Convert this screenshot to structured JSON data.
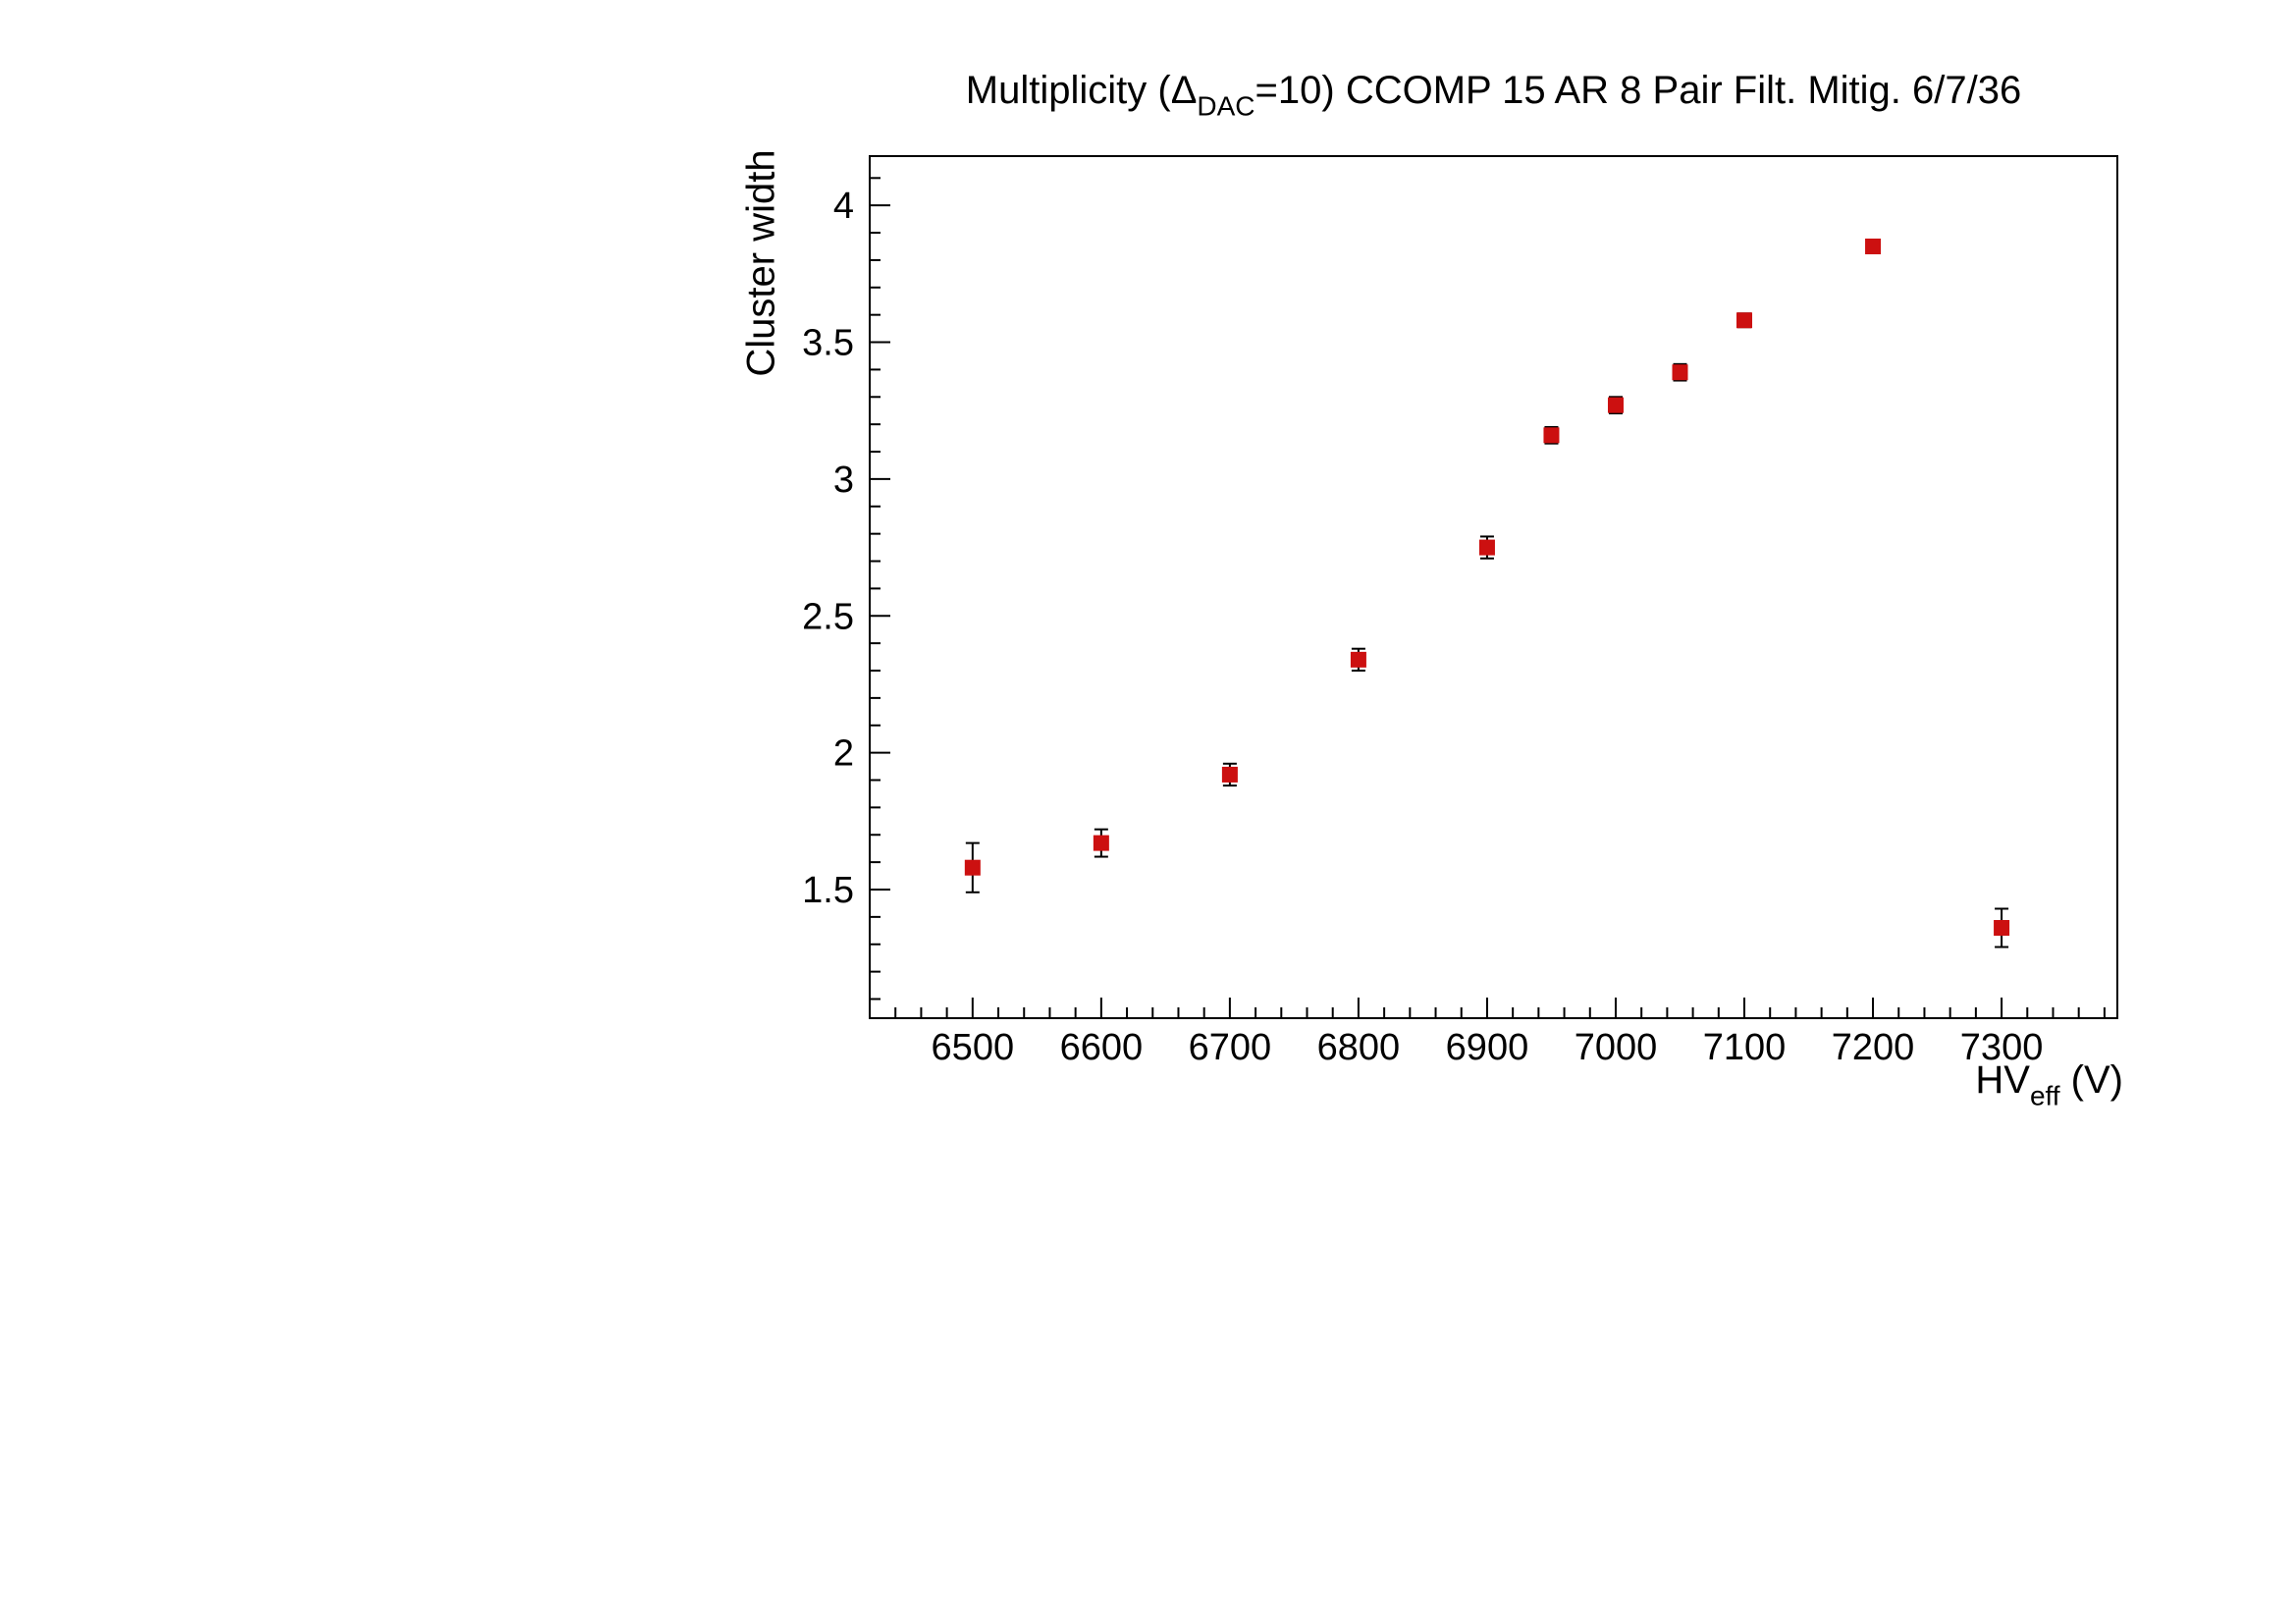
{
  "page": {
    "background": "#ffffff"
  },
  "chart_data": {
    "type": "scatter",
    "title": {
      "prefix": "Multiplicity (Δ",
      "sub": "DAC",
      "suffix": "=10) CCOMP 15 AR 8 Pair Filt. Mitig. 6/7/36"
    },
    "xlabel": {
      "prefix": "HV",
      "sub": "eff",
      "suffix": " (V)"
    },
    "ylabel": "Cluster width",
    "x": [
      6500,
      6600,
      6700,
      6800,
      6900,
      6950,
      7000,
      7050,
      7100,
      7200,
      7300
    ],
    "y": [
      1.58,
      1.67,
      1.92,
      2.34,
      2.75,
      3.16,
      3.27,
      3.39,
      3.58,
      3.85,
      1.36
    ],
    "yerr": [
      0.09,
      0.05,
      0.04,
      0.04,
      0.04,
      0.03,
      0.03,
      0.03,
      0.025,
      0.02,
      0.07
    ],
    "xlim": [
      6420,
      7390
    ],
    "ylim": [
      1.03,
      4.18
    ],
    "x_major_step": 100,
    "x_minor_step": 20,
    "x_label_min": 6500,
    "x_label_max": 7300,
    "y_major_step": 0.5,
    "y_minor_step": 0.1,
    "y_label_min": 1.5,
    "y_label_max": 4.0,
    "marker_color": "#cc1010",
    "error_color": "#000000",
    "axis_color": "#000000",
    "grid": false,
    "legend": null
  }
}
